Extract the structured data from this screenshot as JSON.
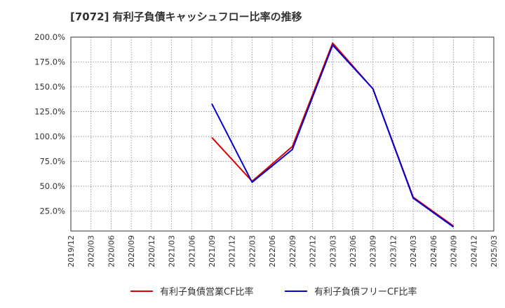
{
  "chart_data": {
    "type": "line",
    "title": "[7072]  有利子負債キャッシュフロー比率の推移",
    "xlabel": "",
    "ylabel": "",
    "ylim": [
      5,
      200
    ],
    "categories": [
      "2019/12",
      "2020/03",
      "2020/06",
      "2020/09",
      "2020/12",
      "2021/03",
      "2021/06",
      "2021/09",
      "2021/12",
      "2022/03",
      "2022/06",
      "2022/09",
      "2022/12",
      "2023/03",
      "2023/06",
      "2023/09",
      "2023/12",
      "2024/03",
      "2024/06",
      "2024/09",
      "2024/12",
      "2025/03"
    ],
    "y_ticks": [
      "200.0%",
      "175.0%",
      "150.0%",
      "125.0%",
      "100.0%",
      "75.0%",
      "50.0%",
      "25.0%"
    ],
    "y_tick_values": [
      200,
      175,
      150,
      125,
      100,
      75,
      50,
      25
    ],
    "grid": true,
    "legend_position": "bottom",
    "series": [
      {
        "name": "有利子負債営業CF比率",
        "color": "#dd0000",
        "values": [
          null,
          null,
          null,
          null,
          null,
          null,
          null,
          99,
          null,
          55,
          null,
          90,
          null,
          194,
          null,
          148,
          null,
          39,
          null,
          10,
          null,
          null
        ]
      },
      {
        "name": "有利子負債フリーCF比率",
        "color": "#0000cc",
        "values": [
          null,
          null,
          null,
          null,
          null,
          null,
          null,
          133,
          null,
          54,
          null,
          87,
          null,
          192,
          null,
          148,
          null,
          38,
          null,
          9,
          null,
          null
        ]
      }
    ]
  }
}
